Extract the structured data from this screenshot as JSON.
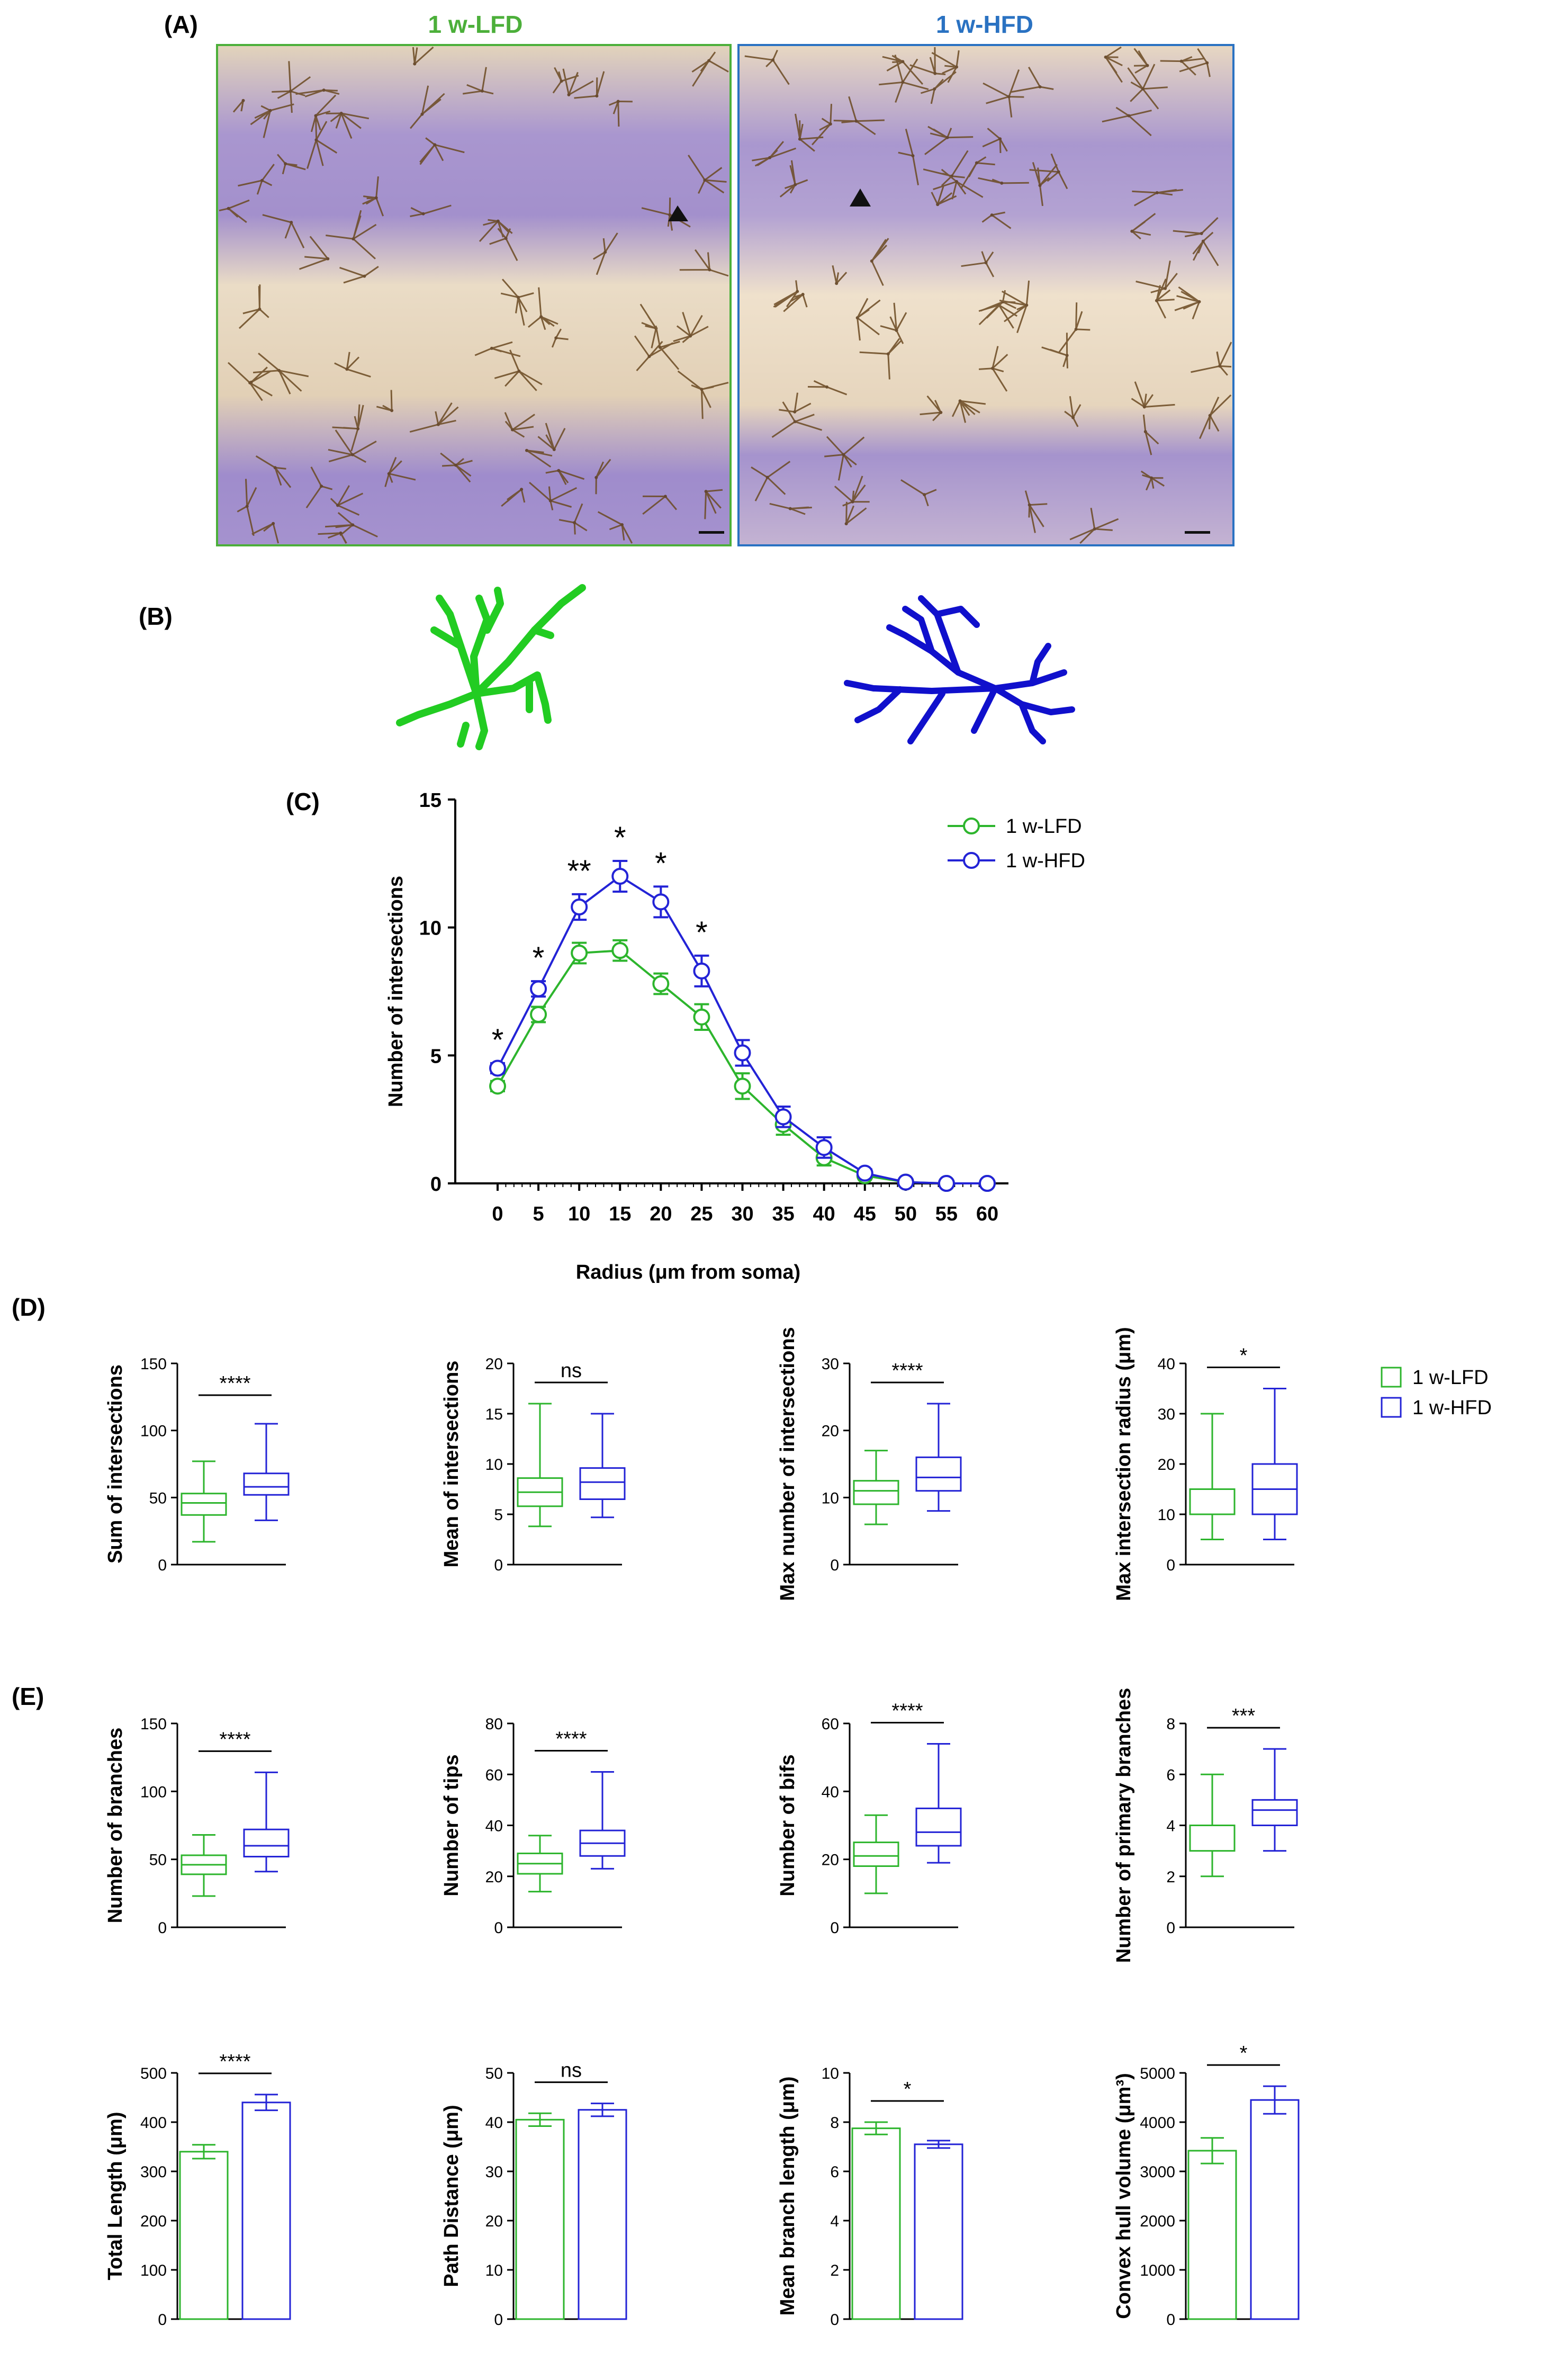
{
  "colors": {
    "lfd": "#2db52d",
    "hfd": "#2323d6",
    "lfd_title": "#4caf3a",
    "hfd_title": "#2a72c2"
  },
  "panels": {
    "a": "(A)",
    "b": "(B)",
    "c": "(C)",
    "d": "(D)",
    "e": "(E)"
  },
  "images": {
    "lfd_title": "1 w-LFD",
    "hfd_title": "1 w-HFD"
  },
  "legend": {
    "lfd": "1 w-LFD",
    "hfd": "1 w-HFD"
  },
  "chart_data": [
    {
      "id": "C",
      "type": "line",
      "title": "",
      "xlabel": "Radius (μm from soma)",
      "ylabel": "Number of intersections",
      "x": [
        0,
        5,
        10,
        15,
        20,
        25,
        30,
        35,
        40,
        45,
        50,
        55,
        60
      ],
      "xlim": [
        0,
        60
      ],
      "ylim": [
        0,
        15
      ],
      "yticks": [
        0,
        5,
        10,
        15
      ],
      "series": [
        {
          "name": "1 w-LFD",
          "values": [
            3.8,
            6.6,
            9.0,
            9.1,
            7.8,
            6.5,
            3.8,
            2.3,
            1.0,
            0.3,
            0.05,
            0.0,
            0.0
          ],
          "errors": [
            0.2,
            0.3,
            0.4,
            0.4,
            0.4,
            0.5,
            0.5,
            0.4,
            0.3,
            0.1,
            0.0,
            0.0,
            0.0
          ]
        },
        {
          "name": "1 w-HFD",
          "values": [
            4.5,
            7.6,
            10.8,
            12.0,
            11.0,
            8.3,
            5.1,
            2.6,
            1.4,
            0.4,
            0.05,
            0.0,
            0.0
          ],
          "errors": [
            0.2,
            0.3,
            0.5,
            0.6,
            0.6,
            0.6,
            0.5,
            0.4,
            0.4,
            0.15,
            0.0,
            0.0,
            0.0
          ]
        }
      ],
      "significance": [
        {
          "x": 0,
          "label": "*"
        },
        {
          "x": 5,
          "label": "*"
        },
        {
          "x": 10,
          "label": "**"
        },
        {
          "x": 15,
          "label": "*"
        },
        {
          "x": 20,
          "label": "*"
        },
        {
          "x": 25,
          "label": "*"
        }
      ]
    },
    {
      "id": "D1",
      "type": "box",
      "ylabel": "Sum of intersections",
      "ylim": [
        0,
        150
      ],
      "yticks": [
        0,
        50,
        100,
        150
      ],
      "sig": "****",
      "boxes": [
        {
          "name": "1 w-LFD",
          "min": 17,
          "q1": 37,
          "median": 46,
          "q3": 53,
          "max": 77
        },
        {
          "name": "1 w-HFD",
          "min": 33,
          "q1": 52,
          "median": 58,
          "q3": 68,
          "max": 105
        }
      ]
    },
    {
      "id": "D2",
      "type": "box",
      "ylabel": "Mean of intersections",
      "ylim": [
        0,
        20
      ],
      "yticks": [
        0,
        5,
        10,
        15,
        20
      ],
      "sig": "ns",
      "boxes": [
        {
          "name": "1 w-LFD",
          "min": 3.8,
          "q1": 5.8,
          "median": 7.2,
          "q3": 8.6,
          "max": 16
        },
        {
          "name": "1 w-HFD",
          "min": 4.7,
          "q1": 6.5,
          "median": 8.2,
          "q3": 9.6,
          "max": 15
        }
      ]
    },
    {
      "id": "D3",
      "type": "box",
      "ylabel": "Max number of intersections",
      "ylim": [
        0,
        30
      ],
      "yticks": [
        0,
        10,
        20,
        30
      ],
      "sig": "****",
      "boxes": [
        {
          "name": "1 w-LFD",
          "min": 6,
          "q1": 9,
          "median": 11,
          "q3": 12.5,
          "max": 17
        },
        {
          "name": "1 w-HFD",
          "min": 8,
          "q1": 11,
          "median": 13,
          "q3": 16,
          "max": 24
        }
      ]
    },
    {
      "id": "D4",
      "type": "box",
      "ylabel": "Max intersection radius (μm)",
      "ylim": [
        0,
        40
      ],
      "yticks": [
        0,
        10,
        20,
        30,
        40
      ],
      "sig": "*",
      "boxes": [
        {
          "name": "1 w-LFD",
          "min": 5,
          "q1": 10,
          "median": 10,
          "q3": 15,
          "max": 30
        },
        {
          "name": "1 w-HFD",
          "min": 5,
          "q1": 10,
          "median": 15,
          "q3": 20,
          "max": 35
        }
      ]
    },
    {
      "id": "E1",
      "type": "box",
      "ylabel": "Number of branches",
      "ylim": [
        0,
        150
      ],
      "yticks": [
        0,
        50,
        100,
        150
      ],
      "sig": "****",
      "boxes": [
        {
          "name": "1 w-LFD",
          "min": 23,
          "q1": 39,
          "median": 46,
          "q3": 53,
          "max": 68
        },
        {
          "name": "1 w-HFD",
          "min": 41,
          "q1": 52,
          "median": 60,
          "q3": 72,
          "max": 114
        }
      ]
    },
    {
      "id": "E2",
      "type": "box",
      "ylabel": "Number of tips",
      "ylim": [
        0,
        80
      ],
      "yticks": [
        0,
        20,
        40,
        60,
        80
      ],
      "sig": "****",
      "boxes": [
        {
          "name": "1 w-LFD",
          "min": 14,
          "q1": 21,
          "median": 25,
          "q3": 29,
          "max": 36
        },
        {
          "name": "1 w-HFD",
          "min": 23,
          "q1": 28,
          "median": 33,
          "q3": 38,
          "max": 61
        }
      ]
    },
    {
      "id": "E3",
      "type": "box",
      "ylabel": "Number of bifs",
      "ylim": [
        0,
        60
      ],
      "yticks": [
        0,
        20,
        40,
        60
      ],
      "sig": "****",
      "boxes": [
        {
          "name": "1 w-LFD",
          "min": 10,
          "q1": 18,
          "median": 21,
          "q3": 25,
          "max": 33
        },
        {
          "name": "1 w-HFD",
          "min": 19,
          "q1": 24,
          "median": 28,
          "q3": 35,
          "max": 54
        }
      ]
    },
    {
      "id": "E4",
      "type": "box",
      "ylabel": "Number of primary branches",
      "ylim": [
        0,
        8
      ],
      "yticks": [
        0,
        2,
        4,
        6,
        8
      ],
      "sig": "***",
      "boxes": [
        {
          "name": "1 w-LFD",
          "min": 2,
          "q1": 3,
          "median": 4,
          "q3": 4,
          "max": 6
        },
        {
          "name": "1 w-HFD",
          "min": 3,
          "q1": 4,
          "median": 4.6,
          "q3": 5,
          "max": 7
        }
      ]
    },
    {
      "id": "E5",
      "type": "bar",
      "ylabel": "Total Length  (μm)",
      "ylim": [
        0,
        500
      ],
      "yticks": [
        0,
        100,
        200,
        300,
        400,
        500
      ],
      "sig": "****",
      "bars": [
        {
          "name": "1 w-LFD",
          "value": 340,
          "error": 14
        },
        {
          "name": "1 w-HFD",
          "value": 440,
          "error": 16
        }
      ]
    },
    {
      "id": "E6",
      "type": "bar",
      "ylabel": "Path Distance (μm)",
      "ylim": [
        0,
        50
      ],
      "yticks": [
        0,
        10,
        20,
        30,
        40,
        50
      ],
      "sig": "ns",
      "bars": [
        {
          "name": "1 w-LFD",
          "value": 40.5,
          "error": 1.3
        },
        {
          "name": "1 w-HFD",
          "value": 42.5,
          "error": 1.3
        }
      ]
    },
    {
      "id": "E7",
      "type": "bar",
      "ylabel": "Mean branch length (μm)",
      "ylim": [
        0,
        10
      ],
      "yticks": [
        0,
        2,
        4,
        6,
        8,
        10
      ],
      "sig": "*",
      "bars": [
        {
          "name": "1 w-LFD",
          "value": 7.75,
          "error": 0.25
        },
        {
          "name": "1 w-HFD",
          "value": 7.1,
          "error": 0.15
        }
      ]
    },
    {
      "id": "E8",
      "type": "bar",
      "ylabel": "Convex hull volume (μm³)",
      "ylim": [
        0,
        5000
      ],
      "yticks": [
        0,
        1000,
        2000,
        3000,
        4000,
        5000
      ],
      "sig": "*",
      "bars": [
        {
          "name": "1 w-LFD",
          "value": 3420,
          "error": 260
        },
        {
          "name": "1 w-HFD",
          "value": 4450,
          "error": 280
        }
      ]
    }
  ]
}
